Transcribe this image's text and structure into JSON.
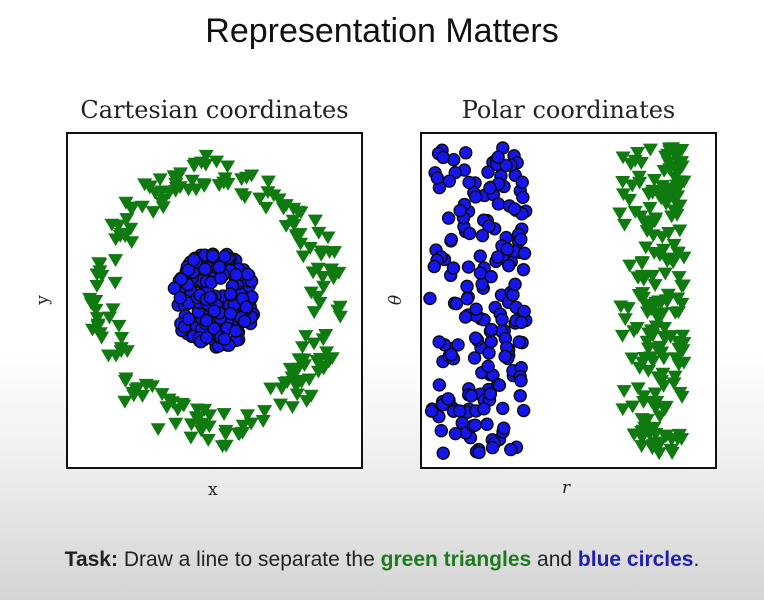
{
  "slide": {
    "title": "Representation Matters"
  },
  "task": {
    "label": "Task:",
    "text_before": " Draw a line to separate the ",
    "green_text": "green triangles",
    "middle_text": " and ",
    "blue_text": "blue circles",
    "end_text": "."
  },
  "colors": {
    "green": "#0f7a0f",
    "blue": "#1515ee",
    "outline": "#0a0a0a"
  },
  "chart_data": [
    {
      "type": "scatter",
      "title": "Cartesian coordinates",
      "xlabel": "x",
      "ylabel": "y",
      "grid": false,
      "xlim": [
        -1.15,
        1.15
      ],
      "ylim": [
        -1.15,
        1.15
      ],
      "series": [
        {
          "name": "",
          "marker": "triangle-down",
          "color": "#0f7a0f",
          "distribution": "ring",
          "r_range": [
            0.78,
            1.05
          ],
          "count": 200
        },
        {
          "name": "",
          "marker": "circle",
          "color": "#1515ee",
          "distribution": "disk",
          "r_range": [
            0,
            0.35
          ],
          "count": 200
        }
      ]
    },
    {
      "type": "scatter",
      "title": "Polar coordinates",
      "xlabel": "r",
      "ylabel": "θ",
      "grid": false,
      "xlim": [
        0,
        1.15
      ],
      "ylim": [
        -3.3,
        3.3
      ],
      "series": [
        {
          "name": "",
          "marker": "triangle-down",
          "color": "#0f7a0f",
          "r_range": [
            0.78,
            1.05
          ],
          "theta_range": [
            -3.14,
            3.14
          ],
          "count": 200
        },
        {
          "name": "",
          "marker": "circle",
          "color": "#1515ee",
          "r_range": [
            0.0,
            0.4
          ],
          "theta_range": [
            -3.14,
            3.14
          ],
          "count": 200
        }
      ]
    }
  ]
}
